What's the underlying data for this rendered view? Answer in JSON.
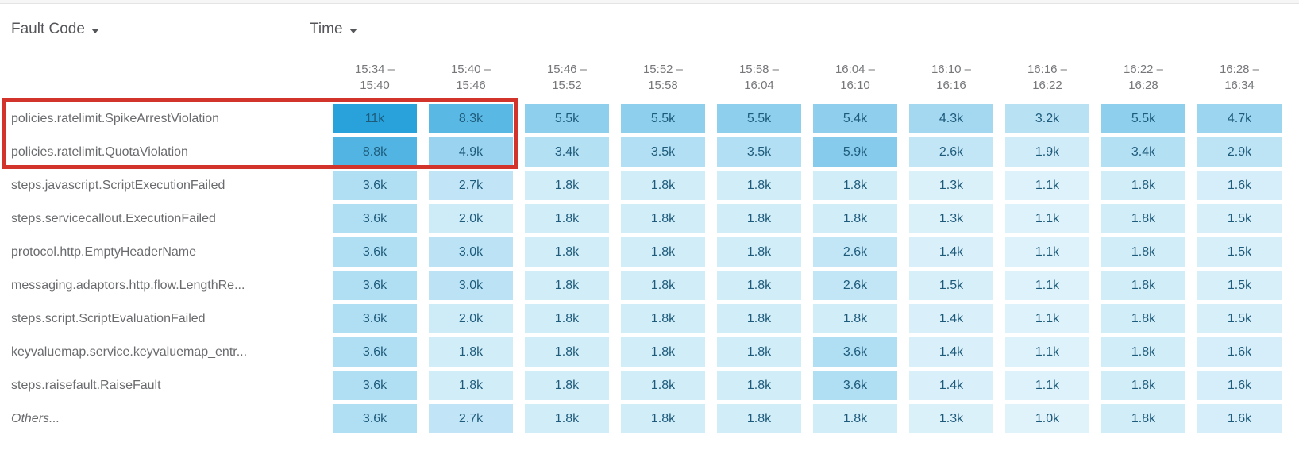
{
  "header": {
    "fault_code_label": "Fault Code",
    "time_label": "Time"
  },
  "chart_data": {
    "type": "heatmap",
    "xlabel": "Time",
    "ylabel": "Fault Code",
    "columns": [
      {
        "start": "15:34",
        "end": "15:40"
      },
      {
        "start": "15:40",
        "end": "15:46"
      },
      {
        "start": "15:46",
        "end": "15:52"
      },
      {
        "start": "15:52",
        "end": "15:58"
      },
      {
        "start": "15:58",
        "end": "16:04"
      },
      {
        "start": "16:04",
        "end": "16:10"
      },
      {
        "start": "16:10",
        "end": "16:16"
      },
      {
        "start": "16:16",
        "end": "16:22"
      },
      {
        "start": "16:22",
        "end": "16:28"
      },
      {
        "start": "16:28",
        "end": "16:34"
      }
    ],
    "rows": [
      {
        "label": "policies.ratelimit.SpikeArrestViolation",
        "italic": false,
        "values": [
          "11k",
          "8.3k",
          "5.5k",
          "5.5k",
          "5.5k",
          "5.4k",
          "4.3k",
          "3.2k",
          "5.5k",
          "4.7k"
        ],
        "values_numeric": [
          11000,
          8300,
          5500,
          5500,
          5500,
          5400,
          4300,
          3200,
          5500,
          4700
        ]
      },
      {
        "label": "policies.ratelimit.QuotaViolation",
        "italic": false,
        "values": [
          "8.8k",
          "4.9k",
          "3.4k",
          "3.5k",
          "3.5k",
          "5.9k",
          "2.6k",
          "1.9k",
          "3.4k",
          "2.9k"
        ],
        "values_numeric": [
          8800,
          4900,
          3400,
          3500,
          3500,
          5900,
          2600,
          1900,
          3400,
          2900
        ]
      },
      {
        "label": "steps.javascript.ScriptExecutionFailed",
        "italic": false,
        "values": [
          "3.6k",
          "2.7k",
          "1.8k",
          "1.8k",
          "1.8k",
          "1.8k",
          "1.3k",
          "1.1k",
          "1.8k",
          "1.6k"
        ],
        "values_numeric": [
          3600,
          2700,
          1800,
          1800,
          1800,
          1800,
          1300,
          1100,
          1800,
          1600
        ]
      },
      {
        "label": "steps.servicecallout.ExecutionFailed",
        "italic": false,
        "values": [
          "3.6k",
          "2.0k",
          "1.8k",
          "1.8k",
          "1.8k",
          "1.8k",
          "1.3k",
          "1.1k",
          "1.8k",
          "1.5k"
        ],
        "values_numeric": [
          3600,
          2000,
          1800,
          1800,
          1800,
          1800,
          1300,
          1100,
          1800,
          1500
        ]
      },
      {
        "label": "protocol.http.EmptyHeaderName",
        "italic": false,
        "values": [
          "3.6k",
          "3.0k",
          "1.8k",
          "1.8k",
          "1.8k",
          "2.6k",
          "1.4k",
          "1.1k",
          "1.8k",
          "1.5k"
        ],
        "values_numeric": [
          3600,
          3000,
          1800,
          1800,
          1800,
          2600,
          1400,
          1100,
          1800,
          1500
        ]
      },
      {
        "label": "messaging.adaptors.http.flow.LengthRe...",
        "italic": false,
        "values": [
          "3.6k",
          "3.0k",
          "1.8k",
          "1.8k",
          "1.8k",
          "2.6k",
          "1.5k",
          "1.1k",
          "1.8k",
          "1.5k"
        ],
        "values_numeric": [
          3600,
          3000,
          1800,
          1800,
          1800,
          2600,
          1500,
          1100,
          1800,
          1500
        ]
      },
      {
        "label": "steps.script.ScriptEvaluationFailed",
        "italic": false,
        "values": [
          "3.6k",
          "2.0k",
          "1.8k",
          "1.8k",
          "1.8k",
          "1.8k",
          "1.4k",
          "1.1k",
          "1.8k",
          "1.5k"
        ],
        "values_numeric": [
          3600,
          2000,
          1800,
          1800,
          1800,
          1800,
          1400,
          1100,
          1800,
          1500
        ]
      },
      {
        "label": "keyvaluemap.service.keyvaluemap_entr...",
        "italic": false,
        "values": [
          "3.6k",
          "1.8k",
          "1.8k",
          "1.8k",
          "1.8k",
          "3.6k",
          "1.4k",
          "1.1k",
          "1.8k",
          "1.6k"
        ],
        "values_numeric": [
          3600,
          1800,
          1800,
          1800,
          1800,
          3600,
          1400,
          1100,
          1800,
          1600
        ]
      },
      {
        "label": "steps.raisefault.RaiseFault",
        "italic": false,
        "values": [
          "3.6k",
          "1.8k",
          "1.8k",
          "1.8k",
          "1.8k",
          "3.6k",
          "1.4k",
          "1.1k",
          "1.8k",
          "1.6k"
        ],
        "values_numeric": [
          3600,
          1800,
          1800,
          1800,
          1800,
          3600,
          1400,
          1100,
          1800,
          1600
        ]
      },
      {
        "label": "Others...",
        "italic": true,
        "values": [
          "3.6k",
          "2.7k",
          "1.8k",
          "1.8k",
          "1.8k",
          "1.8k",
          "1.3k",
          "1.0k",
          "1.8k",
          "1.6k"
        ],
        "values_numeric": [
          3600,
          2700,
          1800,
          1800,
          1800,
          1800,
          1300,
          1000,
          1800,
          1600
        ]
      }
    ],
    "color_scale": {
      "min_value": 1000,
      "max_value": 11000,
      "min_color": "#E0F3FB",
      "max_color": "#29A2DB"
    },
    "cell_text_color": "#1E5B7B"
  },
  "annotation": {
    "highlight_box": {
      "color": "#D2342B"
    }
  }
}
